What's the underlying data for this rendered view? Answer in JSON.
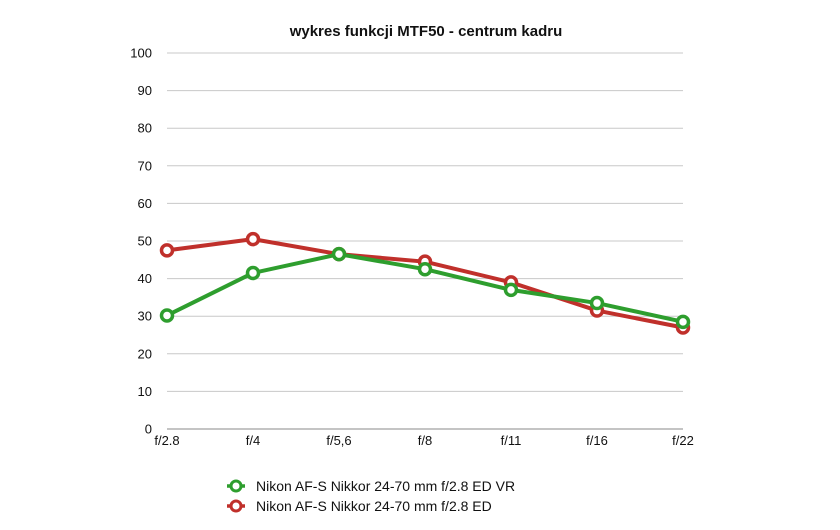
{
  "chart_data": {
    "type": "line",
    "title": "wykres funkcji MTF50 - centrum kadru",
    "xlabel": "",
    "ylabel": "",
    "categories": [
      "f/2.8",
      "f/4",
      "f/5,6",
      "f/8",
      "f/11",
      "f/16",
      "f/22"
    ],
    "ylim": [
      0,
      100
    ],
    "yticks": [
      0,
      10,
      20,
      30,
      40,
      50,
      60,
      70,
      80,
      90,
      100
    ],
    "grid": true,
    "legend_position": "bottom",
    "series": [
      {
        "name": "Nikon AF-S Nikkor 24-70 mm f/2.8 ED VR",
        "color": "#2e9e2e",
        "values": [
          30.2,
          41.5,
          46.5,
          42.5,
          37.0,
          33.5,
          28.5
        ]
      },
      {
        "name": "Nikon AF-S Nikkor 24-70 mm f/2.8 ED",
        "color": "#c0302b",
        "values": [
          47.5,
          50.5,
          46.5,
          44.5,
          39.0,
          31.5,
          27.0
        ]
      }
    ]
  }
}
